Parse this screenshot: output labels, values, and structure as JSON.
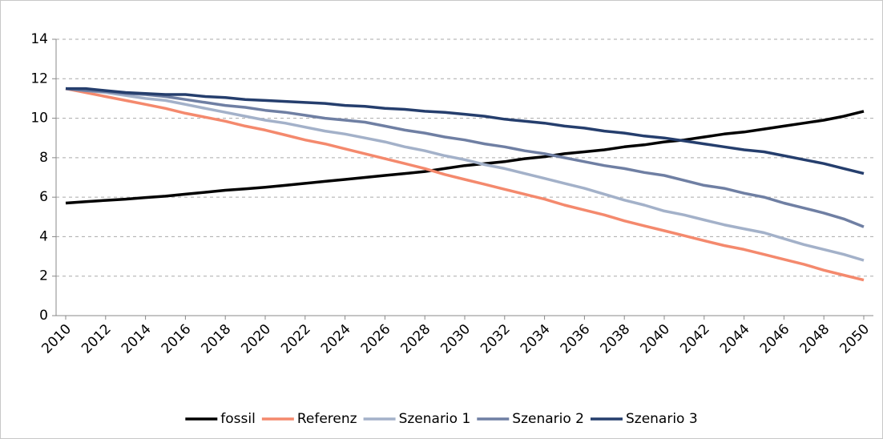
{
  "chart_data": {
    "type": "line",
    "categories": [
      "2010",
      null,
      "2012",
      null,
      "2014",
      null,
      "2016",
      null,
      "2018",
      null,
      "2020",
      null,
      "2022",
      null,
      "2024",
      null,
      "2026",
      null,
      "2028",
      null,
      "2030",
      null,
      "2032",
      null,
      "2034",
      null,
      "2036",
      null,
      "2038",
      null,
      "2040",
      null,
      "2042",
      null,
      "2044",
      null,
      "2046",
      null,
      "2048",
      null,
      "2050"
    ],
    "series": [
      {
        "name": "fossil",
        "color": "#000000",
        "values": [
          5.7,
          5.77,
          5.84,
          5.9,
          5.98,
          6.05,
          6.15,
          6.25,
          6.35,
          6.42,
          6.5,
          6.6,
          6.7,
          6.8,
          6.9,
          7.0,
          7.1,
          7.2,
          7.3,
          7.45,
          7.6,
          7.7,
          7.8,
          7.95,
          8.05,
          8.2,
          8.3,
          8.4,
          8.55,
          8.65,
          8.8,
          8.9,
          9.05,
          9.2,
          9.3,
          9.45,
          9.6,
          9.75,
          9.9,
          10.1,
          10.35
        ]
      },
      {
        "name": "Referenz",
        "color": "#f4896d",
        "values": [
          11.5,
          11.3,
          11.1,
          10.9,
          10.7,
          10.5,
          10.25,
          10.05,
          9.85,
          9.6,
          9.4,
          9.15,
          8.9,
          8.7,
          8.45,
          8.2,
          7.95,
          7.7,
          7.45,
          7.15,
          6.9,
          6.65,
          6.4,
          6.15,
          5.9,
          5.6,
          5.35,
          5.1,
          4.8,
          4.55,
          4.3,
          4.05,
          3.8,
          3.55,
          3.35,
          3.1,
          2.85,
          2.6,
          2.3,
          2.05,
          1.8
        ]
      },
      {
        "name": "Szenario 1",
        "color": "#a3b1c9",
        "values": [
          11.5,
          11.4,
          11.3,
          11.15,
          11.0,
          10.9,
          10.7,
          10.5,
          10.3,
          10.1,
          9.9,
          9.75,
          9.55,
          9.35,
          9.2,
          9.0,
          8.8,
          8.55,
          8.35,
          8.1,
          7.9,
          7.65,
          7.45,
          7.2,
          6.95,
          6.7,
          6.45,
          6.15,
          5.85,
          5.6,
          5.3,
          5.1,
          4.85,
          4.6,
          4.4,
          4.2,
          3.9,
          3.6,
          3.35,
          3.1,
          2.8
        ]
      },
      {
        "name": "Szenario 2",
        "color": "#6f7fa3",
        "values": [
          11.5,
          11.4,
          11.35,
          11.25,
          11.2,
          11.1,
          10.95,
          10.8,
          10.65,
          10.55,
          10.4,
          10.3,
          10.15,
          10.0,
          9.9,
          9.8,
          9.6,
          9.4,
          9.25,
          9.05,
          8.9,
          8.7,
          8.55,
          8.35,
          8.2,
          8.0,
          7.8,
          7.6,
          7.45,
          7.25,
          7.1,
          6.85,
          6.6,
          6.45,
          6.2,
          6.0,
          5.7,
          5.45,
          5.2,
          4.9,
          4.5
        ]
      },
      {
        "name": "Szenario 3",
        "color": "#253e6d",
        "values": [
          11.5,
          11.5,
          11.4,
          11.3,
          11.25,
          11.2,
          11.2,
          11.1,
          11.05,
          10.95,
          10.9,
          10.85,
          10.8,
          10.75,
          10.65,
          10.6,
          10.5,
          10.45,
          10.35,
          10.3,
          10.2,
          10.1,
          9.95,
          9.85,
          9.75,
          9.6,
          9.5,
          9.35,
          9.25,
          9.1,
          9.0,
          8.85,
          8.7,
          8.55,
          8.4,
          8.3,
          8.1,
          7.9,
          7.7,
          7.45,
          7.2
        ]
      }
    ],
    "ylim": [
      0,
      14
    ],
    "yticks": [
      0,
      2,
      4,
      6,
      8,
      10,
      12,
      14
    ],
    "grid": true,
    "legend": "bottom"
  }
}
